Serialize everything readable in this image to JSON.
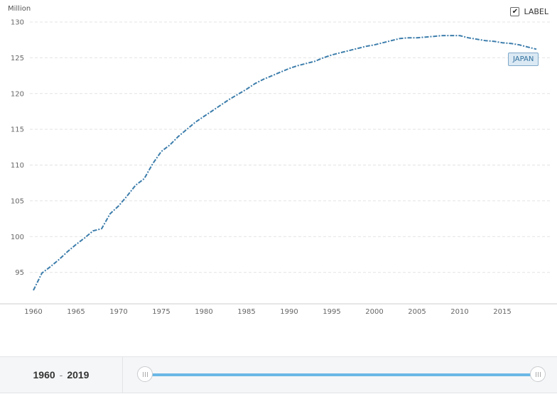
{
  "chart_data": {
    "type": "line",
    "ylabel": "Million",
    "ylim": [
      91,
      130
    ],
    "yticks": [
      95,
      100,
      105,
      110,
      115,
      120,
      125,
      130
    ],
    "xlim": [
      1960,
      2019
    ],
    "xticks": [
      1960,
      1965,
      1970,
      1975,
      1980,
      1985,
      1990,
      1995,
      2000,
      2005,
      2010,
      2015
    ],
    "grid": true,
    "series": [
      {
        "name": "JAPAN",
        "color": "#3c7dab",
        "x": [
          1960,
          1961,
          1962,
          1963,
          1964,
          1965,
          1966,
          1967,
          1968,
          1969,
          1970,
          1971,
          1972,
          1973,
          1974,
          1975,
          1976,
          1977,
          1978,
          1979,
          1980,
          1981,
          1982,
          1983,
          1984,
          1985,
          1986,
          1987,
          1988,
          1989,
          1990,
          1991,
          1992,
          1993,
          1994,
          1995,
          1996,
          1997,
          1998,
          1999,
          2000,
          2001,
          2002,
          2003,
          2004,
          2005,
          2006,
          2007,
          2008,
          2009,
          2010,
          2011,
          2012,
          2013,
          2014,
          2015,
          2016,
          2017,
          2018,
          2019
        ],
        "values": [
          92.5,
          94.9,
          95.8,
          96.8,
          97.9,
          98.9,
          99.8,
          100.8,
          101.1,
          103.2,
          104.3,
          105.7,
          107.2,
          108.1,
          110.2,
          111.9,
          112.8,
          114.0,
          115.0,
          116.0,
          116.8,
          117.6,
          118.4,
          119.2,
          119.9,
          120.6,
          121.4,
          122.0,
          122.5,
          123.0,
          123.5,
          123.9,
          124.2,
          124.5,
          125.0,
          125.4,
          125.7,
          126.0,
          126.3,
          126.6,
          126.8,
          127.1,
          127.4,
          127.7,
          127.8,
          127.8,
          127.9,
          128.0,
          128.1,
          128.1,
          128.1,
          127.8,
          127.6,
          127.4,
          127.3,
          127.1,
          127.0,
          126.8,
          126.5,
          126.2
        ]
      }
    ]
  },
  "controls": {
    "label_toggle_text": "LABEL",
    "label_checked_mark": "✔",
    "series_tag": "JAPAN"
  },
  "range": {
    "start": "1960",
    "separator": "-",
    "end": "2019"
  }
}
